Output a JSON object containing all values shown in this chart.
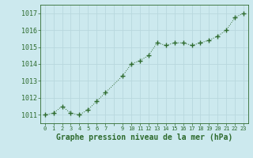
{
  "x": [
    0,
    1,
    2,
    3,
    4,
    5,
    6,
    7,
    9,
    10,
    11,
    12,
    13,
    14,
    15,
    16,
    17,
    18,
    19,
    20,
    21,
    22,
    23
  ],
  "y": [
    1011.0,
    1011.1,
    1011.5,
    1011.1,
    1011.0,
    1011.3,
    1011.8,
    1012.3,
    1013.3,
    1014.0,
    1014.2,
    1014.5,
    1015.25,
    1015.1,
    1015.25,
    1015.25,
    1015.1,
    1015.25,
    1015.4,
    1015.65,
    1016.0,
    1016.75,
    1017.0
  ],
  "line_color": "#2d6a2d",
  "marker": "+",
  "marker_size": 4,
  "marker_lw": 1.0,
  "line_lw": 0.7,
  "bg_color": "#cce9ee",
  "grid_color": "#b8d8de",
  "title": "Graphe pression niveau de la mer (hPa)",
  "ylim": [
    1010.5,
    1017.5
  ],
  "yticks": [
    1011,
    1012,
    1013,
    1014,
    1015,
    1016,
    1017
  ],
  "xtick_labels": [
    "0",
    "1",
    "2",
    "3",
    "4",
    "5",
    "6",
    "7",
    "",
    "9",
    "10",
    "11",
    "12",
    "13",
    "14",
    "15",
    "16",
    "17",
    "18",
    "19",
    "20",
    "21",
    "22",
    "23"
  ],
  "tick_color": "#2d6a2d",
  "title_fontsize": 7,
  "title_fontweight": "bold",
  "title_color": "#2d6a2d",
  "ytick_fontsize": 6,
  "xtick_fontsize": 5
}
